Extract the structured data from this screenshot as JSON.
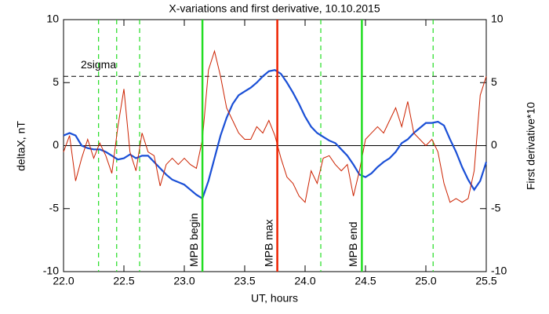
{
  "chart_data": {
    "type": "line",
    "title": "X-variations and first derivative, 10.10.2015",
    "xlabel": "UT, hours",
    "ylabel": "deltaX, nT",
    "y2label": "First derivative*10",
    "ylabel_color": "#1a4fd6",
    "y2label_color": "#dd2200",
    "x": [
      22.0,
      22.05,
      22.1,
      22.15,
      22.2,
      22.25,
      22.3,
      22.35,
      22.4,
      22.45,
      22.5,
      22.55,
      22.6,
      22.65,
      22.7,
      22.75,
      22.8,
      22.85,
      22.9,
      22.95,
      23.0,
      23.05,
      23.1,
      23.15,
      23.2,
      23.25,
      23.3,
      23.35,
      23.4,
      23.45,
      23.5,
      23.55,
      23.6,
      23.65,
      23.7,
      23.75,
      23.8,
      23.85,
      23.9,
      23.95,
      24.0,
      24.05,
      24.1,
      24.15,
      24.2,
      24.25,
      24.3,
      24.35,
      24.4,
      24.45,
      24.5,
      24.55,
      24.6,
      24.65,
      24.7,
      24.75,
      24.8,
      24.85,
      24.9,
      24.95,
      25.0,
      25.05,
      25.1,
      25.15,
      25.2,
      25.25,
      25.3,
      25.35,
      25.4,
      25.45,
      25.5
    ],
    "series": [
      {
        "name": "deltaX",
        "color": "#1a4fd6",
        "width": 2.2,
        "values": [
          0.8,
          1.0,
          0.8,
          0.0,
          -0.2,
          -0.3,
          -0.3,
          -0.5,
          -0.8,
          -1.1,
          -1.0,
          -0.7,
          -1.0,
          -0.8,
          -0.8,
          -1.3,
          -1.8,
          -2.3,
          -2.7,
          -2.9,
          -3.1,
          -3.5,
          -3.9,
          -4.2,
          -2.8,
          -1.0,
          0.8,
          2.2,
          3.3,
          4.0,
          4.3,
          4.6,
          5.0,
          5.5,
          5.9,
          6.0,
          5.7,
          5.0,
          4.2,
          3.3,
          2.3,
          1.5,
          1.0,
          0.7,
          0.4,
          0.2,
          -0.3,
          -0.8,
          -1.5,
          -2.3,
          -2.5,
          -2.2,
          -1.7,
          -1.3,
          -1.0,
          -0.5,
          0.2,
          0.5,
          1.0,
          1.4,
          1.8,
          1.8,
          1.9,
          1.6,
          0.5,
          -0.5,
          -1.7,
          -2.7,
          -3.5,
          -2.8,
          -1.3
        ]
      },
      {
        "name": "First derivative*10",
        "color": "#cc2200",
        "width": 1,
        "axis": "y2",
        "values": [
          -0.5,
          0.8,
          -2.8,
          -1.0,
          0.5,
          -1.0,
          0.2,
          -0.8,
          -2.2,
          1.5,
          4.5,
          -0.5,
          -2.0,
          1.0,
          -0.5,
          -0.8,
          -3.2,
          -1.5,
          -1.0,
          -1.5,
          -1.0,
          -1.5,
          -1.8,
          0.5,
          6.0,
          7.5,
          5.5,
          3.0,
          2.0,
          1.0,
          0.5,
          0.5,
          1.5,
          1.0,
          2.0,
          0.8,
          -1.0,
          -2.5,
          -3.0,
          -4.0,
          -4.5,
          -2.0,
          -3.0,
          -1.0,
          -0.8,
          -1.5,
          -2.0,
          -1.5,
          -4.0,
          -2.0,
          0.5,
          1.0,
          1.5,
          1.0,
          2.0,
          3.0,
          1.5,
          3.5,
          1.0,
          0.5,
          0.0,
          0.5,
          -0.5,
          -3.0,
          -4.5,
          -4.2,
          -4.5,
          -4.2,
          -2.0,
          4.0,
          5.5
        ]
      }
    ],
    "threshold": {
      "value": 5.5,
      "label": "2sigma"
    },
    "dashed_lines": [
      22.29,
      22.44,
      22.63,
      24.13,
      25.06
    ],
    "dashed_color": "#22dd22",
    "events": [
      {
        "x": 23.15,
        "label": "MPB begin",
        "color": "#22dd22"
      },
      {
        "x": 23.77,
        "label": "MPB max",
        "color": "#ee2200"
      },
      {
        "x": 24.47,
        "label": "MPB end",
        "color": "#22dd22"
      }
    ],
    "xlim": [
      22.0,
      25.5
    ],
    "xticks": [
      {
        "value": 22,
        "label": "22.0"
      },
      {
        "value": 22.5,
        "label": "22.5"
      },
      {
        "value": 23,
        "label": "23.0"
      },
      {
        "value": 23.5,
        "label": "23.5"
      },
      {
        "value": 24,
        "label": "24.0"
      },
      {
        "value": 24.5,
        "label": "24.5"
      },
      {
        "value": 25,
        "label": "25.0"
      },
      {
        "value": 25.5,
        "label": "25.5"
      }
    ],
    "ylim": [
      -10,
      10
    ],
    "yticks": [
      -10,
      -5,
      0,
      5,
      10
    ],
    "y2lim": [
      -10,
      10
    ],
    "y2ticks": [
      -10,
      -5,
      0,
      5,
      10
    ]
  }
}
